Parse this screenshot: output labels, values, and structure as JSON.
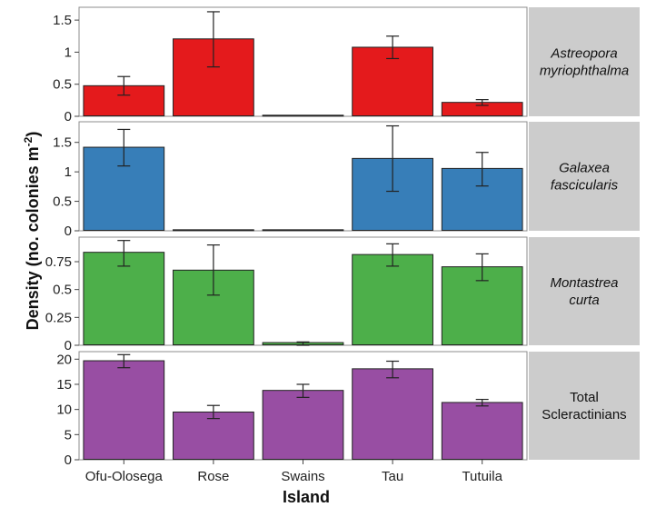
{
  "chart_data": {
    "type": "bar",
    "xlabel": "Island",
    "ylabel": {
      "prefix": "Density  (no. colonies m",
      "superscript": "-2",
      "suffix": ")"
    },
    "categories": [
      "Ofu-Olosega",
      "Rose",
      "Swains",
      "Tau",
      "Tutuila"
    ],
    "grid": false,
    "panels": [
      {
        "strip_label": [
          "Astreopora",
          "myriophthalma"
        ],
        "strip_italic": true,
        "color": "#E41A1C",
        "ylim": [
          0,
          1.7
        ],
        "ticks": [
          0,
          0.5,
          1,
          1.5
        ],
        "tick_labels": [
          "0",
          "0.5",
          "1",
          "1.5"
        ],
        "values": [
          0.47,
          1.2,
          0.01,
          1.07,
          0.21
        ],
        "err_low": [
          0.33,
          0.77,
          null,
          0.9,
          0.17
        ],
        "err_high": [
          0.62,
          1.63,
          null,
          1.25,
          0.26
        ]
      },
      {
        "strip_label": [
          "Galaxea",
          "fascicularis"
        ],
        "strip_italic": true,
        "color": "#377EB8",
        "ylim": [
          0,
          1.85
        ],
        "ticks": [
          0,
          0.5,
          1,
          1.5
        ],
        "tick_labels": [
          "0",
          "0.5",
          "1",
          "1.5"
        ],
        "values": [
          1.41,
          0.01,
          0.01,
          1.22,
          1.05
        ],
        "err_low": [
          1.1,
          null,
          null,
          0.67,
          0.76
        ],
        "err_high": [
          1.72,
          null,
          null,
          1.78,
          1.33
        ]
      },
      {
        "strip_label": [
          "Montastrea",
          "curta"
        ],
        "strip_italic": true,
        "color": "#4DAF4A",
        "ylim": [
          0,
          0.97
        ],
        "ticks": [
          0,
          0.25,
          0.5,
          0.75
        ],
        "tick_labels": [
          "0",
          "0.25",
          "0.5",
          "0.75"
        ],
        "values": [
          0.83,
          0.67,
          0.02,
          0.81,
          0.7
        ],
        "err_low": [
          0.71,
          0.45,
          0.0,
          0.71,
          0.58
        ],
        "err_high": [
          0.94,
          0.9,
          0.03,
          0.91,
          0.82
        ]
      },
      {
        "strip_label": [
          "Total",
          "Scleractinians"
        ],
        "strip_italic": false,
        "color": "#984EA3",
        "ylim": [
          0,
          21.5
        ],
        "ticks": [
          0,
          5,
          10,
          15,
          20
        ],
        "tick_labels": [
          "0",
          "5",
          "10",
          "15",
          "20"
        ],
        "values": [
          19.6,
          9.4,
          13.7,
          18.0,
          11.3
        ],
        "err_low": [
          18.3,
          8.2,
          12.4,
          16.3,
          10.7
        ],
        "err_high": [
          20.9,
          10.8,
          15.0,
          19.6,
          12.0
        ]
      }
    ]
  }
}
